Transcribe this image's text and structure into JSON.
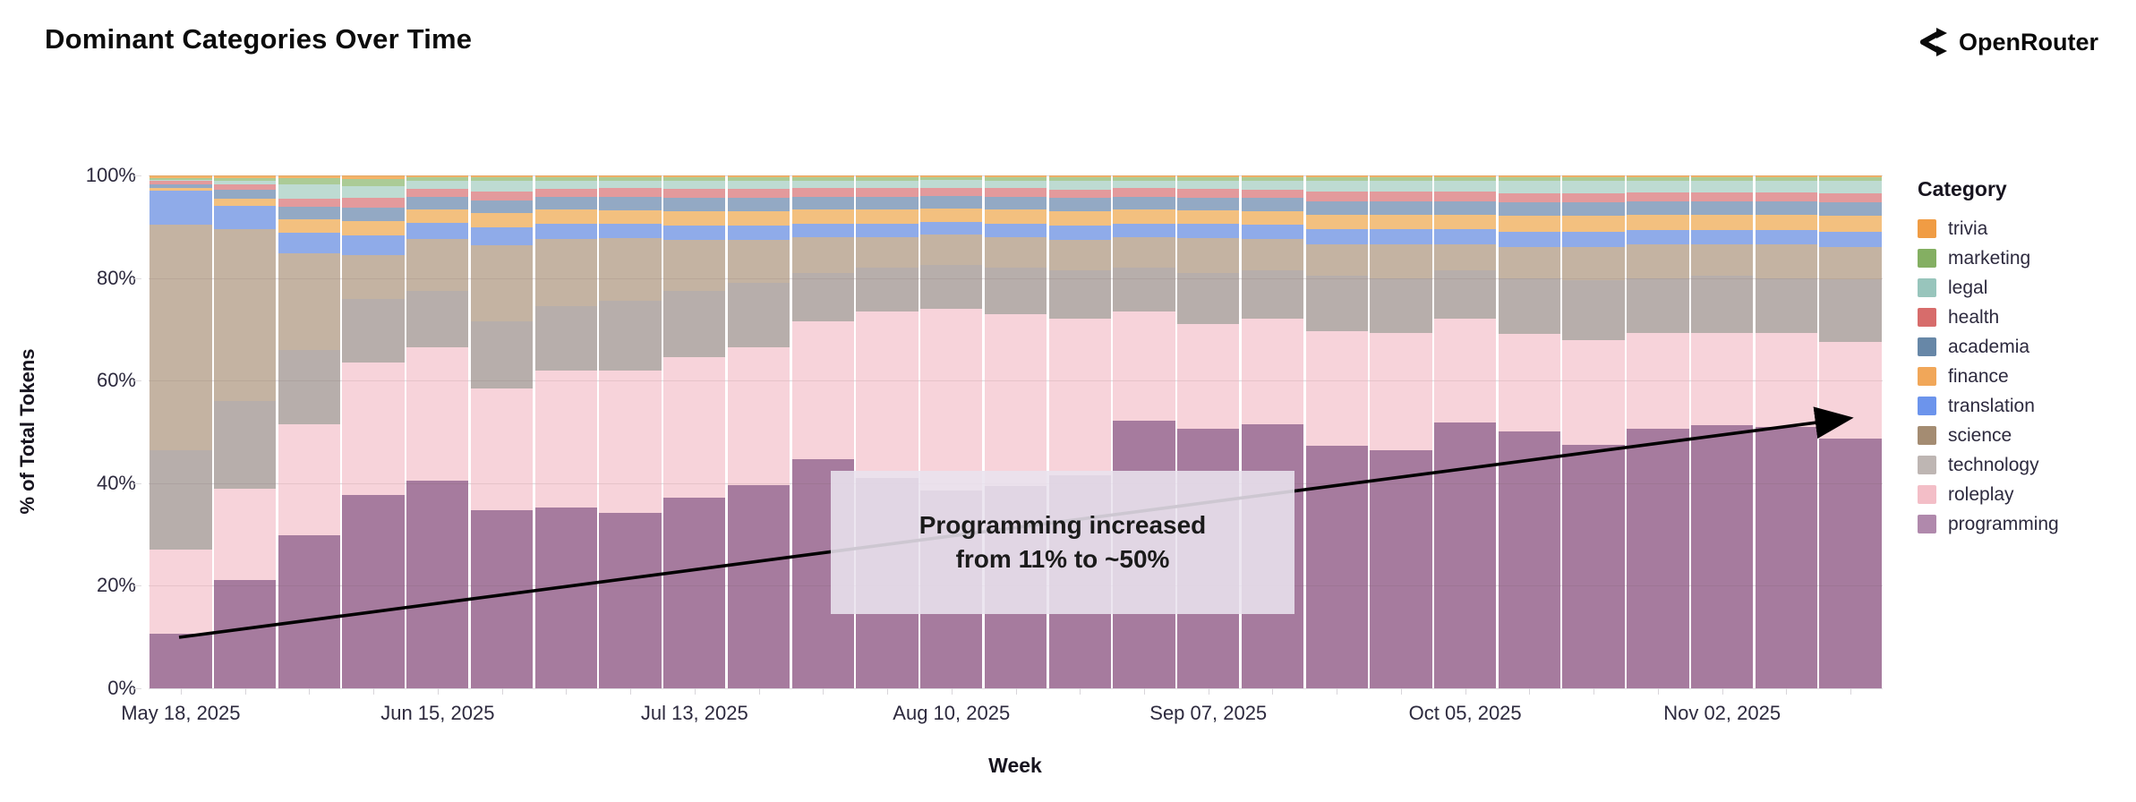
{
  "title": "Dominant Categories Over Time",
  "brand": {
    "name": "OpenRouter"
  },
  "chart_data": {
    "type": "bar",
    "variant": "stacked-normalized",
    "title": "Dominant Categories Over Time",
    "xlabel": "Week",
    "ylabel": "% of Total Tokens",
    "ylim": [
      0,
      100
    ],
    "grid": true,
    "y_ticks": [
      {
        "value": 0,
        "label": "0%"
      },
      {
        "value": 20,
        "label": "20%"
      },
      {
        "value": 40,
        "label": "40%"
      },
      {
        "value": 60,
        "label": "60%"
      },
      {
        "value": 80,
        "label": "80%"
      },
      {
        "value": 100,
        "label": "100%"
      }
    ],
    "weeks": [
      "May 18, 2025",
      "May 25, 2025",
      "Jun 01, 2025",
      "Jun 08, 2025",
      "Jun 15, 2025",
      "Jun 22, 2025",
      "Jun 29, 2025",
      "Jul 06, 2025",
      "Jul 13, 2025",
      "Jul 20, 2025",
      "Jul 27, 2025",
      "Aug 03, 2025",
      "Aug 10, 2025",
      "Aug 17, 2025",
      "Aug 24, 2025",
      "Aug 31, 2025",
      "Sep 07, 2025",
      "Sep 14, 2025",
      "Sep 21, 2025",
      "Sep 28, 2025",
      "Oct 05, 2025",
      "Oct 12, 2025",
      "Oct 19, 2025",
      "Oct 26, 2025",
      "Nov 02, 2025",
      "Nov 09, 2025",
      "Nov 16, 2025"
    ],
    "labeled_tick_indices": [
      0,
      4,
      8,
      12,
      16,
      20,
      24
    ],
    "x_tick_labels": [
      "May 18, 2025",
      "Jun 15, 2025",
      "Jul 13, 2025",
      "Aug 10, 2025",
      "Sep 07, 2025",
      "Oct 05, 2025",
      "Nov 02, 2025"
    ],
    "series": [
      {
        "name": "programming",
        "swatch": "#a97fa5",
        "bar_color": "#a67b9e",
        "values": [
          10.6,
          21.1,
          29.8,
          37.7,
          40.5,
          34.8,
          35.2,
          34.2,
          37.1,
          39.7,
          44.7,
          41.0,
          38.5,
          39.5,
          41.5,
          52.2,
          50.6,
          51.5,
          47.3,
          46.4,
          51.9,
          50.1,
          47.5,
          50.7,
          51.3,
          51.0,
          48.7
        ]
      },
      {
        "name": "roleplay",
        "swatch": "#f2b9c2",
        "bar_color": "#f7d3da",
        "values": [
          16.4,
          17.9,
          21.7,
          25.8,
          26.0,
          23.7,
          26.8,
          27.8,
          27.4,
          26.8,
          26.8,
          32.5,
          35.5,
          33.5,
          30.5,
          21.3,
          20.4,
          20.5,
          22.3,
          22.9,
          20.2,
          19.0,
          20.4,
          18.6,
          18.0,
          18.3,
          18.8
        ]
      },
      {
        "name": "technology",
        "swatch": "#b9b0ac",
        "bar_color": "#b7aeab",
        "values": [
          19.5,
          17.0,
          14.5,
          12.5,
          11.0,
          13.0,
          12.5,
          13.5,
          13.0,
          12.5,
          9.5,
          8.5,
          8.5,
          9.0,
          9.5,
          8.5,
          10.0,
          9.5,
          10.9,
          10.7,
          9.4,
          10.9,
          11.6,
          10.7,
          11.2,
          10.7,
          12.3
        ]
      },
      {
        "name": "science",
        "swatch": "#9c8266",
        "bar_color": "#c4b3a2",
        "values": [
          43.9,
          33.5,
          18.8,
          8.5,
          10.1,
          14.9,
          13.1,
          12.3,
          9.9,
          8.5,
          7.0,
          6.0,
          6.0,
          6.0,
          6.0,
          6.0,
          6.8,
          6.2,
          6.0,
          6.5,
          5.1,
          6.0,
          6.5,
          6.5,
          6.0,
          6.5,
          6.2
        ]
      },
      {
        "name": "translation",
        "swatch": "#5f8bea",
        "bar_color": "#8fabe9",
        "values": [
          6.6,
          4.5,
          4.0,
          3.8,
          3.2,
          3.4,
          3.0,
          2.8,
          2.9,
          2.8,
          2.6,
          2.6,
          2.5,
          2.6,
          2.7,
          2.6,
          2.7,
          2.7,
          3.0,
          3.0,
          2.9,
          3.1,
          3.1,
          2.9,
          2.9,
          2.9,
          3.1
        ]
      },
      {
        "name": "finance",
        "swatch": "#f0a04b",
        "bar_color": "#f3c07f",
        "values": [
          0.6,
          1.5,
          2.7,
          2.8,
          2.6,
          2.9,
          2.7,
          2.6,
          2.8,
          2.8,
          2.7,
          2.7,
          2.6,
          2.7,
          2.8,
          2.7,
          2.7,
          2.7,
          2.9,
          2.9,
          2.9,
          3.0,
          3.0,
          2.9,
          2.9,
          2.9,
          3.0
        ]
      },
      {
        "name": "academia",
        "swatch": "#5a7da0",
        "bar_color": "#93a9c4",
        "values": [
          0.7,
          1.8,
          2.4,
          2.6,
          2.4,
          2.5,
          2.6,
          2.7,
          2.6,
          2.6,
          2.5,
          2.5,
          2.4,
          2.5,
          2.6,
          2.5,
          2.5,
          2.5,
          2.6,
          2.6,
          2.6,
          2.7,
          2.7,
          2.6,
          2.6,
          2.6,
          2.7
        ]
      },
      {
        "name": "health",
        "swatch": "#d45f5e",
        "bar_color": "#e39a9c",
        "values": [
          0.6,
          0.9,
          1.5,
          2.0,
          1.6,
          1.6,
          1.5,
          1.6,
          1.7,
          1.7,
          1.7,
          1.7,
          1.6,
          1.7,
          1.7,
          1.7,
          1.7,
          1.7,
          1.8,
          1.8,
          1.8,
          1.8,
          1.8,
          1.8,
          1.8,
          1.8,
          1.8
        ]
      },
      {
        "name": "legal",
        "swatch": "#8fc0b6",
        "bar_color": "#bedbd2",
        "values": [
          0.3,
          0.8,
          2.9,
          2.2,
          1.6,
          2.2,
          1.6,
          1.5,
          1.6,
          1.6,
          1.5,
          1.5,
          1.5,
          1.5,
          1.6,
          1.5,
          1.6,
          1.6,
          2.2,
          2.2,
          2.2,
          2.3,
          2.3,
          2.2,
          2.2,
          2.2,
          2.3
        ]
      },
      {
        "name": "marketing",
        "swatch": "#7aa855",
        "bar_color": "#abcb96",
        "values": [
          0.3,
          0.5,
          1.2,
          1.5,
          0.6,
          0.6,
          0.7,
          0.7,
          0.7,
          0.7,
          0.7,
          0.7,
          0.6,
          0.7,
          0.7,
          0.7,
          0.7,
          0.8,
          0.7,
          0.7,
          0.7,
          0.8,
          0.8,
          0.8,
          0.8,
          0.8,
          0.8
        ]
      },
      {
        "name": "trivia",
        "swatch": "#ef9434",
        "bar_color": "#f4b368",
        "values": [
          0.5,
          0.5,
          0.5,
          0.6,
          0.4,
          0.4,
          0.3,
          0.3,
          0.3,
          0.3,
          0.3,
          0.3,
          0.3,
          0.3,
          0.4,
          0.3,
          0.3,
          0.3,
          0.3,
          0.3,
          0.3,
          0.3,
          0.3,
          0.3,
          0.3,
          0.3,
          0.3
        ]
      }
    ],
    "legend": {
      "title": "Category",
      "order_top_to_bottom": [
        "trivia",
        "marketing",
        "legal",
        "health",
        "academia",
        "finance",
        "translation",
        "science",
        "technology",
        "roleplay",
        "programming"
      ],
      "position": "right"
    },
    "annotation": {
      "line1": "Programming increased",
      "line2": "from 11% to ~50%",
      "arrow_from_pct": 10,
      "arrow_to_pct": 52
    }
  }
}
